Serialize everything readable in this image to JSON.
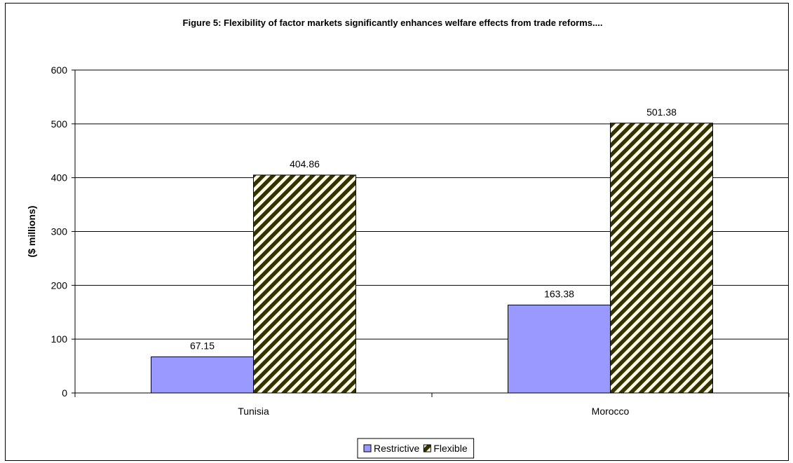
{
  "chart_data": {
    "type": "bar",
    "title": "Figure 5: Flexibility of factor markets significantly enhances welfare effects from trade reforms....",
    "xlabel": "",
    "ylabel": "($ millions)",
    "ylim": [
      0,
      600
    ],
    "yticks": [
      0,
      100,
      200,
      300,
      400,
      500,
      600
    ],
    "categories": [
      "Tunisia",
      "Morocco"
    ],
    "series": [
      {
        "name": "Restrictive",
        "values": [
          67.15,
          163.38
        ],
        "labels": [
          "67.15",
          "163.38"
        ],
        "color": "#9999ff",
        "pattern": "solid"
      },
      {
        "name": "Flexible",
        "values": [
          404.86,
          501.38
        ],
        "labels": [
          "404.86",
          "501.38"
        ],
        "color": "#333300",
        "pattern": "diagonal-stripes"
      }
    ],
    "grid": true,
    "legend": "bottom"
  }
}
